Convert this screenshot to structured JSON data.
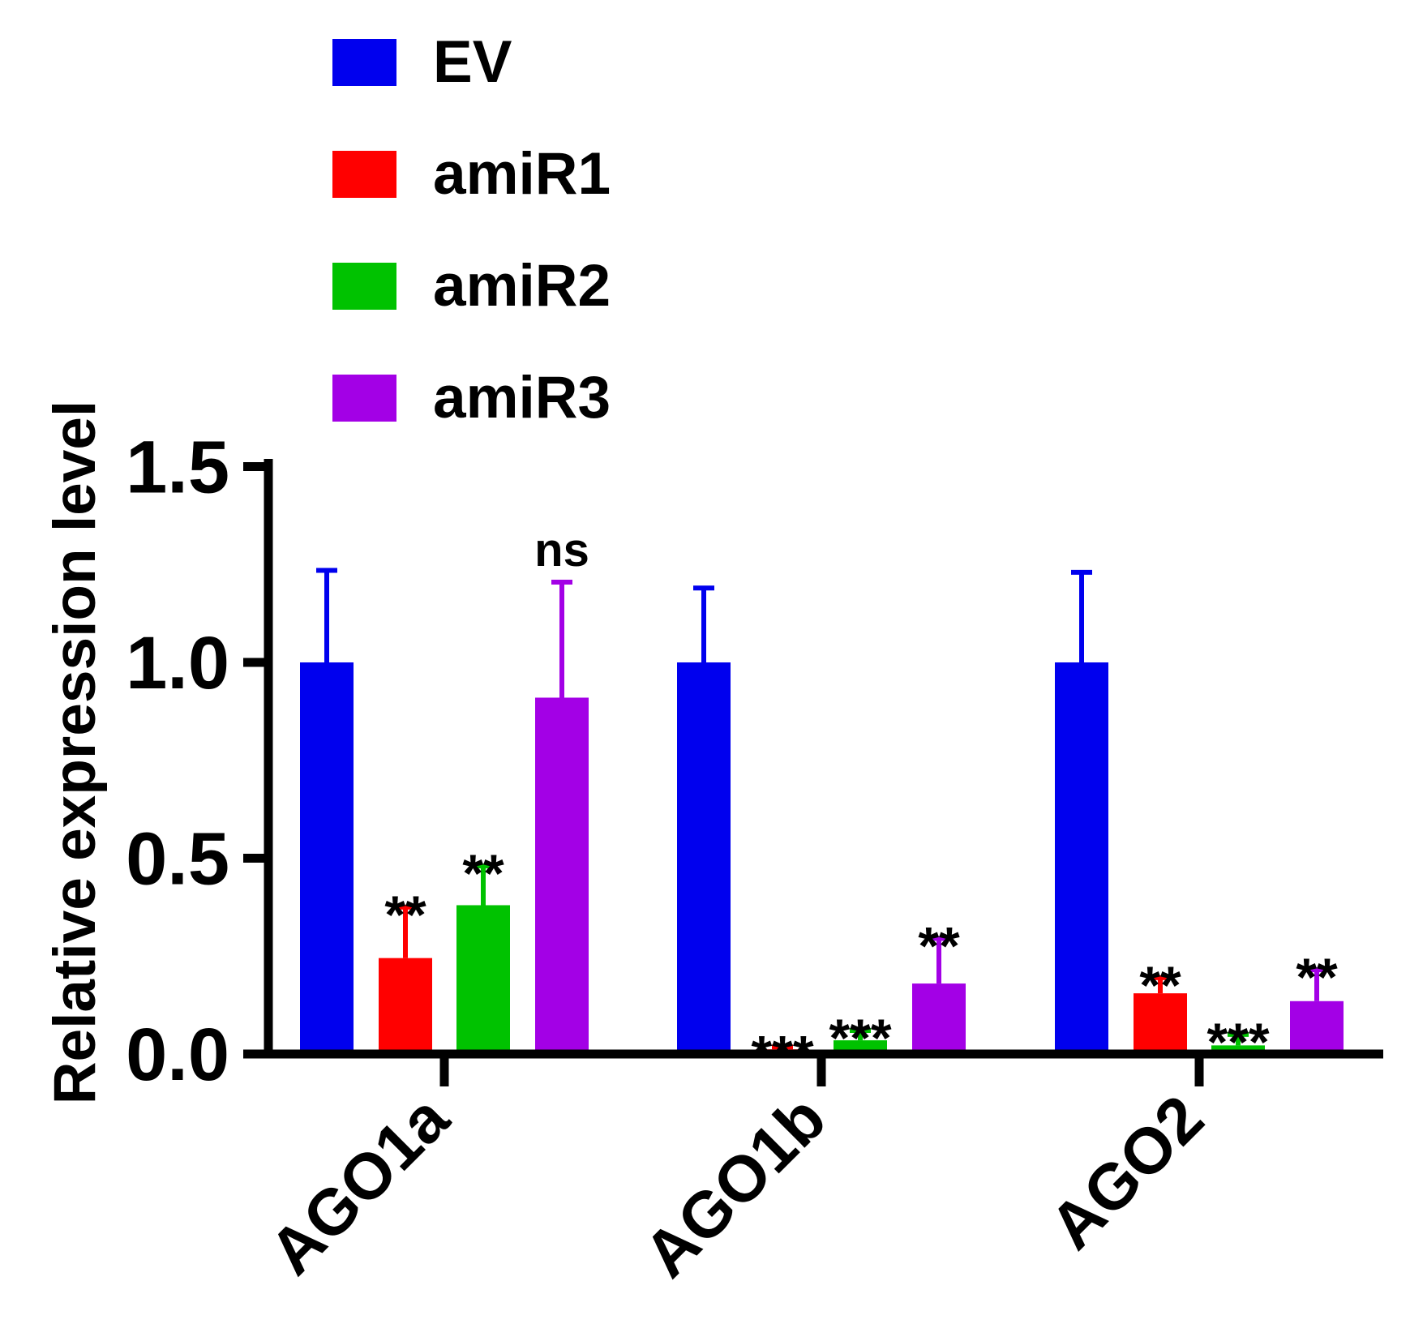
{
  "chart_data": {
    "type": "bar",
    "title": "",
    "xlabel": "",
    "ylabel": "Relative expression level",
    "ylim": [
      0,
      1.5
    ],
    "yticks": [
      0.0,
      0.5,
      1.0,
      1.5
    ],
    "ytick_labels": [
      "0.0",
      "0.5",
      "1.0",
      "1.5"
    ],
    "categories": [
      "AGO1a",
      "AGO1b",
      "AGO2"
    ],
    "legend_position": "top-left",
    "series": [
      {
        "name": "EV",
        "color": "#0000ee",
        "values": [
          1.0,
          1.0,
          1.0
        ],
        "errors": [
          0.235,
          0.19,
          0.23
        ],
        "significance": [
          "",
          "",
          ""
        ]
      },
      {
        "name": "amiR1",
        "color": "#ff0000",
        "values": [
          0.245,
          0.012,
          0.155
        ],
        "errors": [
          0.13,
          0.006,
          0.04
        ],
        "significance": [
          "**",
          "***",
          "**"
        ]
      },
      {
        "name": "amiR2",
        "color": "#00c200",
        "values": [
          0.38,
          0.035,
          0.022
        ],
        "errors": [
          0.1,
          0.025,
          0.028
        ],
        "significance": [
          "**",
          "***",
          "***"
        ]
      },
      {
        "name": "amiR3",
        "color": "#a300e6",
        "values": [
          0.91,
          0.18,
          0.135
        ],
        "errors": [
          0.295,
          0.115,
          0.08
        ],
        "significance": [
          "ns",
          "**",
          "**"
        ]
      }
    ]
  }
}
